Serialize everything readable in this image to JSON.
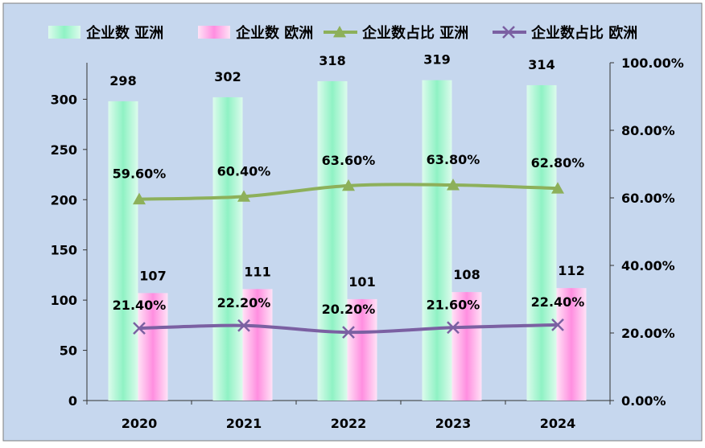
{
  "chart_data": {
    "type": "bar",
    "categories": [
      "2020",
      "2021",
      "2022",
      "2023",
      "2024"
    ],
    "legend_position": "top",
    "grid": false,
    "series": [
      {
        "name": "企业数 亚洲",
        "type": "bar",
        "axis": "left",
        "values": [
          298,
          302,
          318,
          319,
          314
        ],
        "labels": [
          "298",
          "302",
          "318",
          "319",
          "314"
        ],
        "color": "#8ff2c4"
      },
      {
        "name": "企业数 欧洲",
        "type": "bar",
        "axis": "left",
        "values": [
          107,
          111,
          101,
          108,
          112
        ],
        "labels": [
          "107",
          "111",
          "101",
          "108",
          "112"
        ],
        "color": "#ff8ee0"
      },
      {
        "name": "企业数占比 亚洲",
        "type": "line",
        "marker": "triangle",
        "axis": "right",
        "values": [
          59.6,
          60.4,
          63.6,
          63.8,
          62.8
        ],
        "labels": [
          "59.60%",
          "60.40%",
          "63.60%",
          "63.80%",
          "62.80%"
        ],
        "color": "#8db05a"
      },
      {
        "name": "企业数占比 欧洲",
        "type": "line",
        "marker": "x",
        "axis": "right",
        "values": [
          21.4,
          22.2,
          20.2,
          21.6,
          22.4
        ],
        "labels": [
          "21.40%",
          "22.20%",
          "20.20%",
          "21.60%",
          "22.40%"
        ],
        "color": "#7b60a2"
      }
    ],
    "y_left": {
      "min": 0,
      "max": 336.36,
      "ticks": [
        0,
        50,
        100,
        150,
        200,
        250,
        300
      ],
      "tick_labels": [
        "0",
        "50",
        "100",
        "150",
        "200",
        "250",
        "300"
      ]
    },
    "y_right": {
      "min": 0,
      "max": 100,
      "ticks": [
        0,
        20,
        40,
        60,
        80,
        100
      ],
      "tick_labels": [
        "0.00%",
        "20.00%",
        "40.00%",
        "60.00%",
        "80.00%",
        "100.00%"
      ]
    },
    "colors": {
      "background": "#c6d7ee",
      "border": "#7f7f7f",
      "axis": "#333333",
      "text": "#000000"
    }
  }
}
